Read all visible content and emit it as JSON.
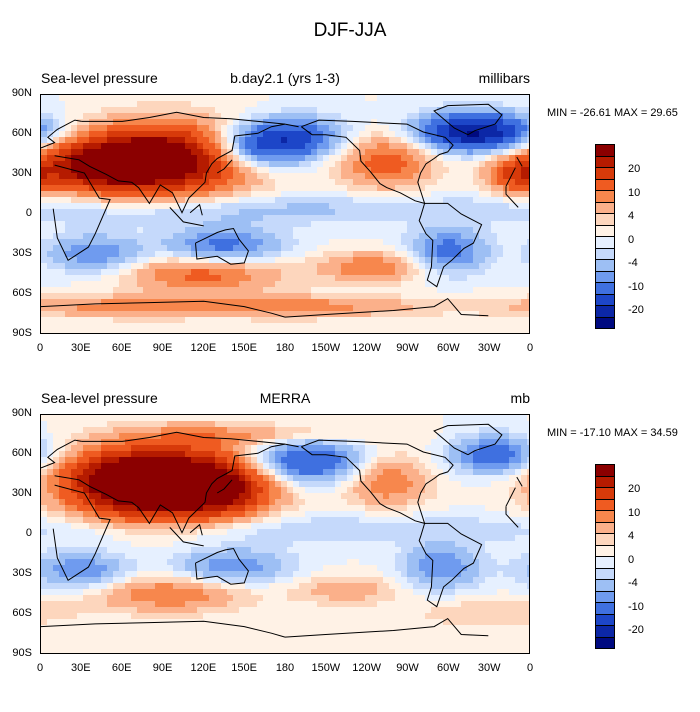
{
  "title": "DJF-JJA",
  "panels": [
    {
      "left_title": "Sea-level pressure",
      "center_title": "b.day2.1 (yrs 1-3)",
      "right_title": "millibars",
      "minmax": "MIN = -26.61 MAX =  29.65",
      "min": -26.61,
      "max": 29.65
    },
    {
      "left_title": "Sea-level pressure",
      "center_title": "MERRA",
      "right_title": "mb",
      "minmax": "MIN = -17.10 MAX =  34.59",
      "min": -17.1,
      "max": 34.59
    }
  ],
  "lat_labels": [
    "90N",
    "60N",
    "30N",
    "0",
    "30S",
    "60S",
    "90S"
  ],
  "lon_labels": [
    "0",
    "30E",
    "60E",
    "90E",
    "120E",
    "150E",
    "180",
    "150W",
    "120W",
    "90W",
    "60W",
    "30W",
    "0"
  ],
  "colorbar": {
    "labels": [
      "20",
      "10",
      "4",
      "0",
      "-4",
      "-10",
      "-20"
    ],
    "colors": [
      "#8b0000",
      "#b51b00",
      "#d73a0a",
      "#ef5b21",
      "#f7874d",
      "#fbb08a",
      "#fdd6bd",
      "#fff2e6",
      "#e6f0ff",
      "#c5d9fb",
      "#9dbff4",
      "#6f9bef",
      "#3f70e0",
      "#1d46c8",
      "#0c27a6",
      "#000a80"
    ]
  }
}
